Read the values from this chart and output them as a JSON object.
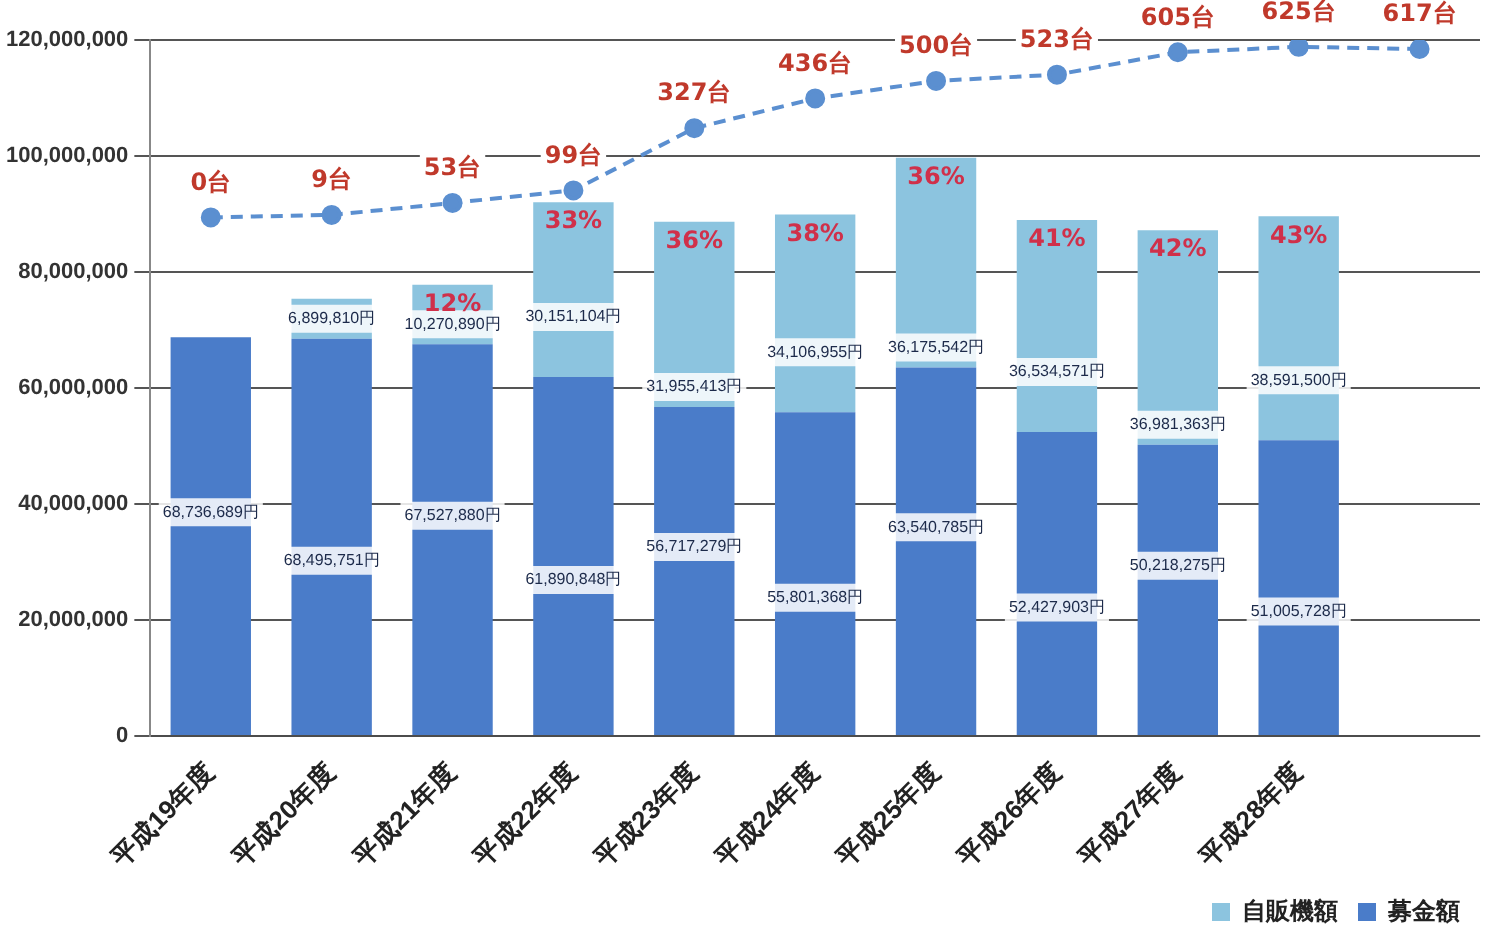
{
  "chart_data": {
    "type": "bar",
    "stacked": true,
    "categories": [
      "平成19年度",
      "平成20年度",
      "平成21年度",
      "平成22年度",
      "平成23年度",
      "平成24年度",
      "平成25年度",
      "平成26年度",
      "平成27年度",
      "平成28年度",
      null
    ],
    "series": [
      {
        "name": "募金額",
        "color": "#4a7cc9",
        "values": [
          68736689,
          68495751,
          67527880,
          61890848,
          56717279,
          55801368,
          63540785,
          52427903,
          50218275,
          51005728,
          null
        ],
        "value_labels": [
          "68,736,689円",
          "68,495,751円",
          "67,527,880円",
          "61,890,848円",
          "56,717,279円",
          "55,801,368円",
          "63,540,785円",
          "52,427,903円",
          "50,218,275円",
          "51,005,728円",
          null
        ]
      },
      {
        "name": "自販機額",
        "color": "#8cc4df",
        "values": [
          0,
          6899810,
          10270890,
          30151104,
          31955413,
          34106955,
          36175542,
          36534571,
          36981363,
          38591500,
          null
        ],
        "value_labels": [
          null,
          "6,899,810円",
          "10,270,890円",
          "30,151,104円",
          "31,955,413円",
          "34,106,955円",
          "36,175,542円",
          "36,534,571円",
          "36,981,363円",
          "38,591,500円",
          null
        ]
      },
      {
        "type": "line",
        "axis": "y2",
        "color": "#5b8fd0",
        "marker": "circle",
        "line_style": "dashed",
        "values": [
          0,
          9,
          53,
          99,
          327,
          436,
          500,
          523,
          605,
          625,
          617
        ],
        "value_labels": [
          "0台",
          "9台",
          "53台",
          "99台",
          "327台",
          "436台",
          "500台",
          "523台",
          "605台",
          "625台",
          "617台"
        ]
      }
    ],
    "ylim": [
      0,
      120000000
    ],
    "yticks": [
      {
        "value": 0,
        "label": "0"
      },
      {
        "value": 20000000,
        "label": "20,000,000"
      },
      {
        "value": 40000000,
        "label": "40,000,000"
      },
      {
        "value": 60000000,
        "label": "60,000,000"
      },
      {
        "value": 80000000,
        "label": "80,000,000"
      },
      {
        "value": 100000000,
        "label": "100,000,000"
      },
      {
        "value": 120000000,
        "label": "120,000,000"
      }
    ],
    "y2lim": [
      -1900,
      650
    ],
    "grid": "y",
    "legend": "bottom right",
    "annotations": [
      {
        "text": "12%",
        "x": "平成21年度",
        "y": 77798770
      },
      {
        "text": "33%",
        "x": "平成22年度",
        "y": 92041952
      },
      {
        "text": "36%",
        "x": "平成23年度",
        "y": 88672692
      },
      {
        "text": "38%",
        "x": "平成24年度",
        "y": 89908323
      },
      {
        "text": "36%",
        "x": "平成25年度",
        "y": 99716327
      },
      {
        "text": "41%",
        "x": "平成26年度",
        "y": 88962474
      },
      {
        "text": "42%",
        "x": "平成27年度",
        "y": 87199638
      },
      {
        "text": "43%",
        "x": "平成28年度",
        "y": 89597228
      }
    ]
  }
}
